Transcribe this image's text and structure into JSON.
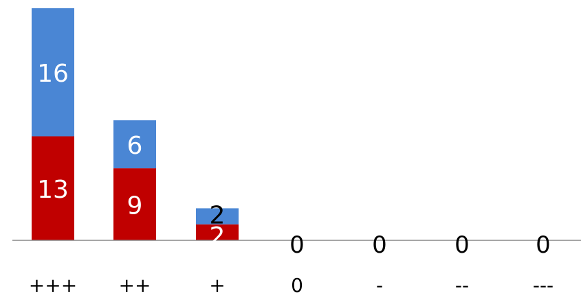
{
  "chart_data": {
    "type": "bar",
    "stacked": true,
    "categories": [
      "+++",
      "++",
      "+",
      "0",
      "-",
      "--",
      "---"
    ],
    "series": [
      {
        "values": [
          13,
          9,
          2,
          0,
          0,
          0,
          0
        ],
        "color": "#c00000"
      },
      {
        "values": [
          16,
          6,
          2,
          0,
          0,
          0,
          0
        ],
        "color": "#4a86d4"
      }
    ],
    "total_labels": [
      "",
      "",
      "",
      "0",
      "0",
      "0",
      "0"
    ],
    "xlabel": "",
    "ylabel": "",
    "ylim": [
      0,
      29
    ],
    "grid": false,
    "legend": "none",
    "axis_color": "#888888"
  }
}
